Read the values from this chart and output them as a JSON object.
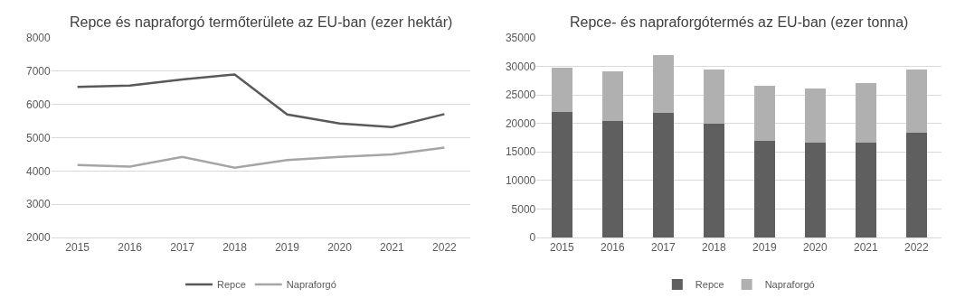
{
  "chart_data": [
    {
      "type": "line",
      "title": "Repce és napraforgó termőterülete az EU-ban (ezer hektár)",
      "categories": [
        "2015",
        "2016",
        "2017",
        "2018",
        "2019",
        "2020",
        "2021",
        "2022"
      ],
      "ylim": [
        2000,
        8000
      ],
      "yticks": [
        2000,
        3000,
        4000,
        5000,
        6000,
        7000,
        8000
      ],
      "grid": "y",
      "legend": "bottom",
      "marker": "none",
      "line_style": "solid",
      "series": [
        {
          "name": "Repce",
          "color": "#595959",
          "values": [
            6530,
            6570,
            6750,
            6900,
            5700,
            5430,
            5320,
            5710
          ]
        },
        {
          "name": "Napraforgó",
          "color": "#a5a5a5",
          "values": [
            4180,
            4130,
            4420,
            4100,
            4330,
            4420,
            4500,
            4700
          ]
        }
      ]
    },
    {
      "type": "bar",
      "stacked": true,
      "title": "Repce- és napraforgótermés az EU-ban (ezer tonna)",
      "categories": [
        "2015",
        "2016",
        "2017",
        "2018",
        "2019",
        "2020",
        "2021",
        "2022"
      ],
      "ylim": [
        0,
        35000
      ],
      "yticks": [
        0,
        5000,
        10000,
        15000,
        20000,
        25000,
        30000,
        35000
      ],
      "grid": "y",
      "legend": "bottom",
      "series": [
        {
          "name": "Repce",
          "color": "#5f5f5f",
          "values": [
            22000,
            20500,
            21900,
            19900,
            17000,
            16600,
            16700,
            18300
          ]
        },
        {
          "name": "Napraforgó",
          "color": "#b0b0b0",
          "values": [
            7700,
            8700,
            10100,
            9500,
            9600,
            9600,
            10400,
            11200
          ]
        }
      ]
    }
  ]
}
